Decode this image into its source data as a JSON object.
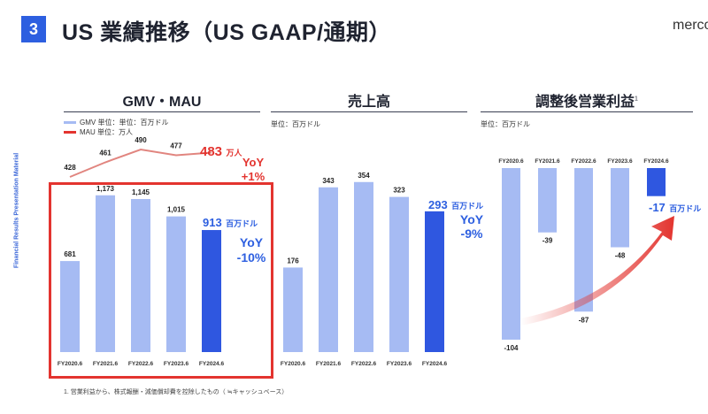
{
  "header": {
    "section_number": "3",
    "title": "US 業績推移（US GAAP/通期）",
    "brand": "merco"
  },
  "sidebar_text": "Financial Results Presentation Material",
  "footnote": "1. 営業利益から、株式報酬・減価償却費を控除したもの（ ≒キャッシュベース）",
  "colors": {
    "light_bar": "#a6bbf3",
    "highlight_bar": "#2f57e0",
    "mau_line": "#e1857f",
    "red": "#e3342f",
    "blue": "#2d5fe0"
  },
  "gmv": {
    "title": "GMV・MAU",
    "legend_gmv": "GMV 単位：単位：百万ドル",
    "legend_mau": "MAU 単位：万人",
    "highlight_value": "913",
    "highlight_unit": "百万ドル",
    "yoy_label": "YoY",
    "yoy_value": "-10%",
    "mau_highlight_value": "483",
    "mau_highlight_unit": "万人",
    "mau_yoy_label": "YoY",
    "mau_yoy_value": "+1%"
  },
  "revenue": {
    "title": "売上高",
    "unit_label": "単位：百万ドル",
    "highlight_value": "293",
    "highlight_unit": "百万ドル",
    "yoy_label": "YoY",
    "yoy_value": "-9%"
  },
  "op_income": {
    "title": "調整後営業利益",
    "title_superscript": "1",
    "unit_label": "単位：百万ドル",
    "highlight_value": "-17",
    "highlight_unit": "百万ドル"
  },
  "chart_data": [
    {
      "type": "bar",
      "title": "GMV・MAU",
      "categories": [
        "FY2020.6",
        "FY2021.6",
        "FY2022.6",
        "FY2023.6",
        "FY2024.6"
      ],
      "series": [
        {
          "name": "GMV",
          "unit": "百万ドル",
          "values": [
            681,
            1173,
            1145,
            1015,
            913
          ],
          "value_labels": [
            "681",
            "1,173",
            "1,145",
            "1,015",
            "913"
          ]
        },
        {
          "name": "MAU",
          "type": "line",
          "unit": "万人",
          "values": [
            428,
            461,
            490,
            477,
            483
          ]
        }
      ]
    },
    {
      "type": "bar",
      "title": "売上高",
      "categories": [
        "FY2020.6",
        "FY2021.6",
        "FY2022.6",
        "FY2023.6",
        "FY2024.6"
      ],
      "values": [
        176,
        343,
        354,
        323,
        293
      ]
    },
    {
      "type": "bar",
      "title": "調整後営業利益",
      "categories": [
        "FY2020.6",
        "FY2021.6",
        "FY2022.6",
        "FY2023.6",
        "FY2024.6"
      ],
      "values": [
        -104,
        -39,
        -87,
        -48,
        -17
      ]
    }
  ]
}
